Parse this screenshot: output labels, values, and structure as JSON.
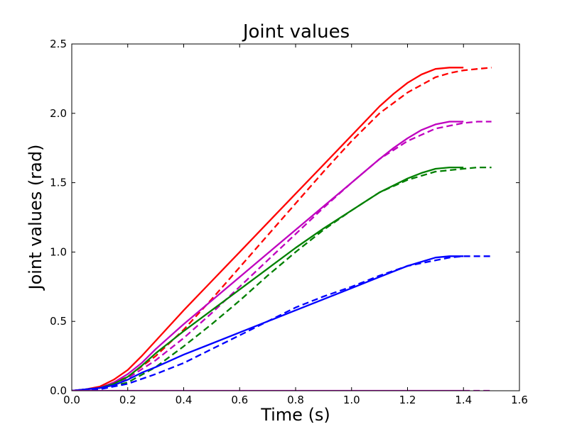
{
  "chart_data": {
    "type": "line",
    "title": "Joint values",
    "xlabel": "Time (s)",
    "ylabel": "Joint values (rad)",
    "xlim": [
      0.0,
      1.6
    ],
    "ylim": [
      0.0,
      2.5
    ],
    "x_ticks": [
      "0.0",
      "0.2",
      "0.4",
      "0.6",
      "0.8",
      "1.0",
      "1.2",
      "1.4",
      "1.6"
    ],
    "y_ticks": [
      "0.0",
      "0.5",
      "1.0",
      "1.5",
      "2.0",
      "2.5"
    ],
    "grid": false,
    "series": [
      {
        "color": "#ff0000",
        "style": "solid",
        "x": [
          0.0,
          0.05,
          0.1,
          0.15,
          0.2,
          0.25,
          0.3,
          0.4,
          0.5,
          0.6,
          0.7,
          0.8,
          0.9,
          1.0,
          1.1,
          1.15,
          1.2,
          1.25,
          1.3,
          1.35,
          1.4
        ],
        "y": [
          0.0,
          0.01,
          0.03,
          0.08,
          0.15,
          0.25,
          0.36,
          0.58,
          0.79,
          1.0,
          1.21,
          1.42,
          1.63,
          1.84,
          2.05,
          2.14,
          2.22,
          2.28,
          2.32,
          2.33,
          2.33
        ]
      },
      {
        "color": "#ff0000",
        "style": "dashed",
        "x": [
          0.0,
          0.1,
          0.2,
          0.3,
          0.4,
          0.5,
          0.6,
          0.7,
          0.8,
          0.9,
          1.0,
          1.1,
          1.2,
          1.3,
          1.35,
          1.4,
          1.45,
          1.5
        ],
        "y": [
          0.0,
          0.02,
          0.1,
          0.25,
          0.44,
          0.66,
          0.89,
          1.12,
          1.35,
          1.58,
          1.8,
          2.0,
          2.15,
          2.26,
          2.29,
          2.31,
          2.32,
          2.33
        ]
      },
      {
        "color": "#bf00bf",
        "style": "solid",
        "x": [
          0.0,
          0.05,
          0.1,
          0.15,
          0.2,
          0.25,
          0.3,
          0.4,
          0.5,
          0.6,
          0.7,
          0.8,
          0.9,
          1.0,
          1.1,
          1.15,
          1.2,
          1.25,
          1.3,
          1.35,
          1.4
        ],
        "y": [
          0.0,
          0.01,
          0.02,
          0.06,
          0.12,
          0.2,
          0.3,
          0.48,
          0.65,
          0.82,
          0.99,
          1.16,
          1.33,
          1.5,
          1.67,
          1.75,
          1.82,
          1.88,
          1.92,
          1.94,
          1.94
        ]
      },
      {
        "color": "#bf00bf",
        "style": "dashed",
        "x": [
          0.0,
          0.1,
          0.2,
          0.3,
          0.4,
          0.5,
          0.6,
          0.7,
          0.8,
          0.9,
          1.0,
          1.1,
          1.2,
          1.3,
          1.35,
          1.4,
          1.45,
          1.5
        ],
        "y": [
          0.0,
          0.02,
          0.09,
          0.22,
          0.38,
          0.56,
          0.75,
          0.94,
          1.13,
          1.32,
          1.5,
          1.67,
          1.8,
          1.89,
          1.91,
          1.93,
          1.94,
          1.94
        ]
      },
      {
        "color": "#008000",
        "style": "solid",
        "x": [
          0.0,
          0.05,
          0.1,
          0.15,
          0.2,
          0.25,
          0.3,
          0.4,
          0.5,
          0.6,
          0.7,
          0.8,
          0.9,
          1.0,
          1.1,
          1.2,
          1.25,
          1.3,
          1.35,
          1.4
        ],
        "y": [
          0.0,
          0.01,
          0.02,
          0.05,
          0.1,
          0.18,
          0.27,
          0.43,
          0.58,
          0.73,
          0.88,
          1.03,
          1.17,
          1.3,
          1.43,
          1.53,
          1.57,
          1.6,
          1.61,
          1.61
        ]
      },
      {
        "color": "#008000",
        "style": "dashed",
        "x": [
          0.0,
          0.1,
          0.2,
          0.3,
          0.4,
          0.5,
          0.6,
          0.7,
          0.8,
          0.9,
          1.0,
          1.1,
          1.2,
          1.3,
          1.35,
          1.4,
          1.45,
          1.5
        ],
        "y": [
          0.0,
          0.01,
          0.06,
          0.17,
          0.32,
          0.48,
          0.65,
          0.83,
          1.0,
          1.16,
          1.3,
          1.43,
          1.52,
          1.58,
          1.59,
          1.6,
          1.61,
          1.61
        ]
      },
      {
        "color": "#0000ff",
        "style": "solid",
        "x": [
          0.0,
          0.05,
          0.1,
          0.15,
          0.2,
          0.25,
          0.3,
          0.4,
          0.5,
          0.6,
          0.7,
          0.8,
          0.9,
          1.0,
          1.1,
          1.2,
          1.25,
          1.3,
          1.35,
          1.4
        ],
        "y": [
          0.0,
          0.01,
          0.02,
          0.04,
          0.08,
          0.13,
          0.17,
          0.26,
          0.34,
          0.42,
          0.5,
          0.58,
          0.66,
          0.74,
          0.82,
          0.9,
          0.93,
          0.96,
          0.97,
          0.97
        ]
      },
      {
        "color": "#0000ff",
        "style": "dashed",
        "x": [
          0.0,
          0.1,
          0.2,
          0.3,
          0.4,
          0.5,
          0.6,
          0.7,
          0.8,
          0.9,
          1.0,
          1.1,
          1.2,
          1.3,
          1.35,
          1.4,
          1.45,
          1.5
        ],
        "y": [
          0.0,
          0.01,
          0.05,
          0.12,
          0.2,
          0.3,
          0.4,
          0.5,
          0.6,
          0.68,
          0.75,
          0.83,
          0.9,
          0.94,
          0.96,
          0.97,
          0.97,
          0.97
        ]
      },
      {
        "color": "#bf00bf",
        "style": "solid",
        "x": [
          0.0,
          1.4
        ],
        "y": [
          0.0,
          0.0
        ]
      },
      {
        "color": "#bf00bf",
        "style": "dashed",
        "x": [
          1.4,
          1.5
        ],
        "y": [
          0.0,
          0.0
        ]
      }
    ]
  }
}
